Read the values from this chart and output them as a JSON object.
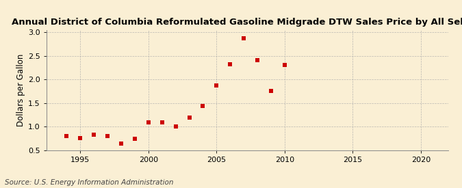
{
  "title": "Annual District of Columbia Reformulated Gasoline Midgrade DTW Sales Price by All Sellers",
  "ylabel": "Dollars per Gallon",
  "source": "Source: U.S. Energy Information Administration",
  "background_color": "#faefd4",
  "marker_color": "#cc0000",
  "years": [
    1994,
    1995,
    1996,
    1997,
    1998,
    1999,
    2000,
    2001,
    2002,
    2003,
    2004,
    2005,
    2006,
    2007,
    2008,
    2009,
    2010
  ],
  "values": [
    0.8,
    0.76,
    0.84,
    0.81,
    0.65,
    0.75,
    1.1,
    1.09,
    1.0,
    1.19,
    1.44,
    1.87,
    2.33,
    2.88,
    2.41,
    1.76,
    2.31
  ],
  "xlim": [
    1992.5,
    2022
  ],
  "ylim": [
    0.5,
    3.05
  ],
  "xticks": [
    1995,
    2000,
    2005,
    2010,
    2015,
    2020
  ],
  "yticks": [
    0.5,
    1.0,
    1.5,
    2.0,
    2.5,
    3.0
  ],
  "title_fontsize": 9.5,
  "axis_label_fontsize": 8.5,
  "tick_fontsize": 8,
  "source_fontsize": 7.5,
  "grid_color": "#aaaaaa",
  "spine_color": "#888888"
}
